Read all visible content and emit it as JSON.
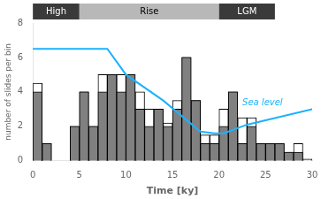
{
  "chart_data": {
    "type": "histogram",
    "xlabel": "Time [ky]",
    "ylabel": "number of slides per bin",
    "xlim": [
      0,
      30
    ],
    "ylim": [
      0,
      8
    ],
    "xticks": [
      0,
      5,
      10,
      15,
      20,
      25,
      30
    ],
    "yticks": [
      0,
      2,
      4,
      6,
      8
    ],
    "grid": false,
    "bins": [
      0,
      1,
      2,
      3,
      4,
      5,
      6,
      7,
      8,
      9,
      10,
      11,
      12,
      13,
      14,
      15,
      16,
      17,
      18,
      19,
      20,
      21,
      22,
      23,
      24,
      25,
      26,
      27,
      28,
      29,
      30
    ],
    "series": [
      {
        "type": "bar",
        "color": "#ffffff",
        "values": [
          4.5,
          1,
          0,
          0,
          2,
          4,
          2,
          5,
          5,
          5,
          5,
          4,
          3,
          3,
          2.2,
          3.5,
          6,
          3.5,
          1.5,
          1.5,
          3,
          4,
          2.5,
          2.5,
          1,
          1,
          1,
          0.5,
          1,
          0.1
        ]
      },
      {
        "type": "bar",
        "color": "#808080",
        "values": [
          4,
          1,
          0,
          0,
          2,
          4,
          2,
          4,
          5,
          4,
          5,
          3,
          2,
          3,
          2,
          3,
          6,
          3.5,
          1,
          1,
          2,
          4,
          1,
          2,
          1,
          1,
          1,
          0.5,
          0.5,
          0
        ]
      },
      {
        "type": "line",
        "color": "#1ab2ff",
        "x": [
          0,
          6,
          8,
          10,
          14,
          18,
          19.5,
          20.5,
          23,
          30
        ],
        "values": [
          6.5,
          6.5,
          6.5,
          5.0,
          3.5,
          1.7,
          1.6,
          1.6,
          2.1,
          3.0
        ]
      }
    ],
    "annotations": [
      {
        "text": "Sea level",
        "x": 22.5,
        "y": 3.2,
        "color": "#1ab2ff"
      }
    ],
    "bands": [
      {
        "label": "High",
        "start": 0,
        "end": 5,
        "color": "#3a3a3a"
      },
      {
        "label": "Rise",
        "start": 5,
        "end": 20,
        "color": "#b8b8b8"
      },
      {
        "label": "LGM",
        "start": 20,
        "end": 26,
        "color": "#3a3a3a"
      }
    ]
  }
}
